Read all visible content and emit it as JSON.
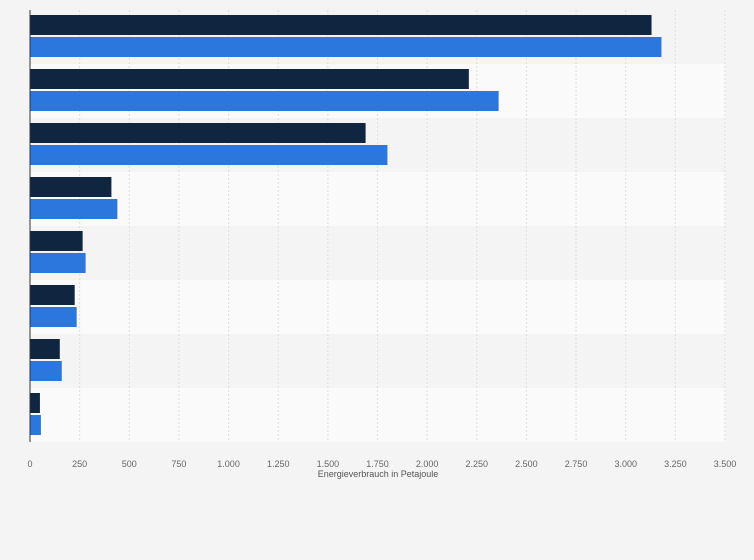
{
  "chart_data": {
    "type": "bar",
    "orientation": "horizontal",
    "categories": [
      "",
      "",
      "",
      "",
      "",
      "",
      "",
      ""
    ],
    "series": [
      {
        "values": [
          3130,
          2210,
          1690,
          410,
          265,
          225,
          150,
          50
        ]
      },
      {
        "values": [
          3180,
          2360,
          1800,
          440,
          280,
          235,
          160,
          55
        ]
      }
    ],
    "xlabel": "Energieverbrauch in Petajoule",
    "xlim": [
      0,
      3500
    ],
    "xticks": [
      {
        "value": 0,
        "label": "0"
      },
      {
        "value": 250,
        "label": "250"
      },
      {
        "value": 500,
        "label": "500"
      },
      {
        "value": 750,
        "label": "750"
      },
      {
        "value": 1000,
        "label": "1.000"
      },
      {
        "value": 1250,
        "label": "1.250"
      },
      {
        "value": 1500,
        "label": "1.500"
      },
      {
        "value": 1750,
        "label": "1.750"
      },
      {
        "value": 2000,
        "label": "2.000"
      },
      {
        "value": 2250,
        "label": "2.250"
      },
      {
        "value": 2500,
        "label": "2.500"
      },
      {
        "value": 2750,
        "label": "2.750"
      },
      {
        "value": 3000,
        "label": "3.000"
      },
      {
        "value": 3250,
        "label": "3.250"
      },
      {
        "value": 3500,
        "label": "3.500"
      }
    ],
    "colors": [
      "#0f2540",
      "#2b77dd"
    ],
    "grid": true
  }
}
